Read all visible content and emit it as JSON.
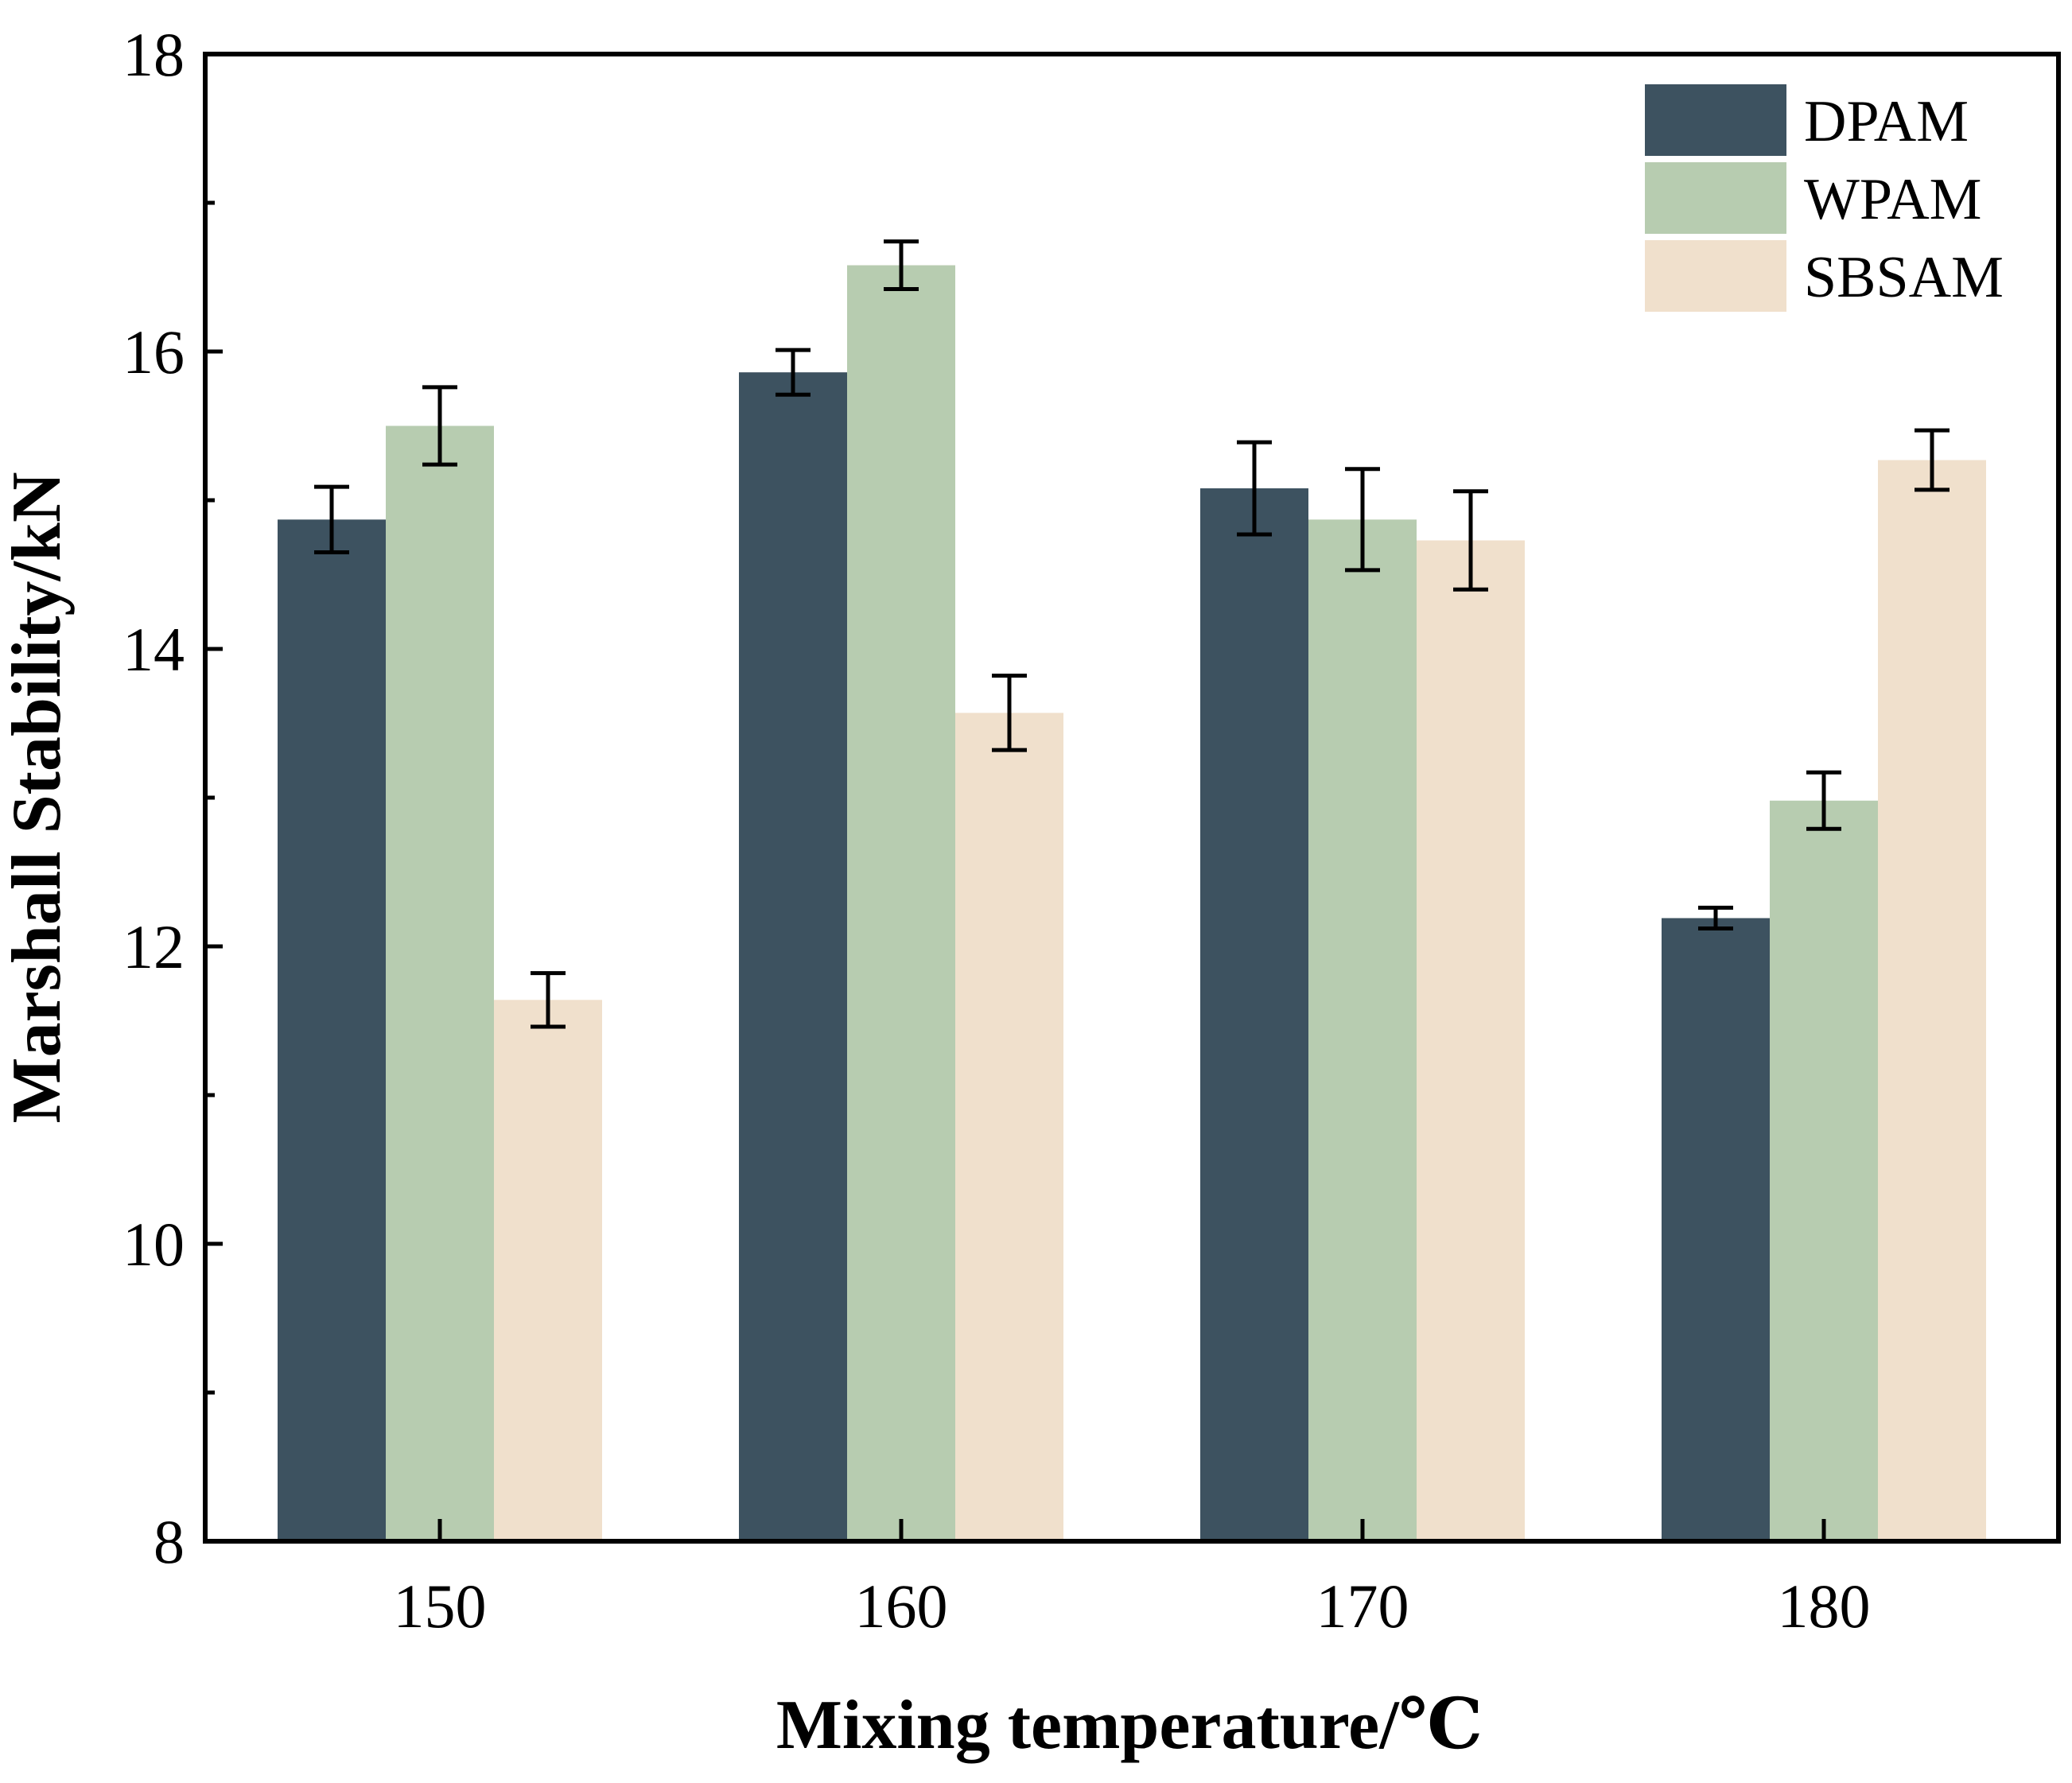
{
  "chart_data": {
    "type": "bar",
    "title": "",
    "xlabel": "Mixing temperature/℃",
    "ylabel": "Marshall Stability/kN",
    "categories": [
      "150",
      "160",
      "170",
      "180"
    ],
    "ylim": [
      8,
      18
    ],
    "yticks": [
      8,
      10,
      12,
      14,
      16,
      18
    ],
    "grid": false,
    "legend_position": "top-right",
    "series": [
      {
        "name": "DPAM",
        "color": "#3d5260",
        "values": [
          14.87,
          15.86,
          15.08,
          12.19
        ],
        "errors": [
          0.22,
          0.15,
          0.31,
          0.07
        ]
      },
      {
        "name": "WPAM",
        "color": "#b7ccb0",
        "values": [
          15.5,
          16.58,
          14.87,
          12.98
        ],
        "errors": [
          0.26,
          0.16,
          0.34,
          0.19
        ]
      },
      {
        "name": "SBSAM",
        "color": "#f0e0cc",
        "values": [
          11.64,
          13.57,
          14.73,
          15.27
        ],
        "errors": [
          0.18,
          0.25,
          0.33,
          0.2
        ]
      }
    ]
  }
}
